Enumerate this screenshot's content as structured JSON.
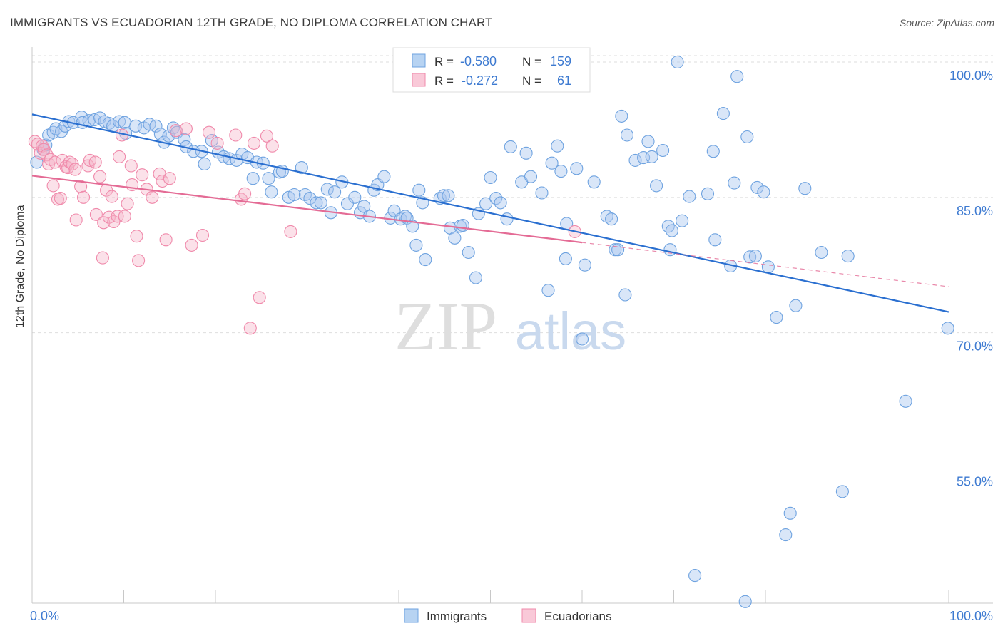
{
  "header": {
    "title": "IMMIGRANTS VS ECUADORIAN 12TH GRADE, NO DIPLOMA CORRELATION CHART",
    "source": "Source: ZipAtlas.com"
  },
  "watermark": {
    "zip": "ZIP",
    "atlas": "atlas"
  },
  "stats_legend": [
    {
      "r_label": "R =",
      "r_value": "-0.580",
      "n_label": "N =",
      "n_value": "159",
      "color": "#6fa3e0"
    },
    {
      "r_label": "R =",
      "r_value": "-0.272",
      "n_label": "N =",
      "n_value": "61",
      "color": "#f08aab"
    }
  ],
  "chart_data": {
    "type": "scatter",
    "title": "IMMIGRANTS VS ECUADORIAN 12TH GRADE, NO DIPLOMA CORRELATION CHART",
    "xlabel": "",
    "ylabel": "12th Grade, No Diploma",
    "xlim": [
      0,
      100
    ],
    "ylim": [
      40.5,
      101.5
    ],
    "x_tick_labels": [
      "0.0%",
      "100.0%"
    ],
    "y_ticks": [
      {
        "value": 100,
        "label": "100.0%"
      },
      {
        "value": 85,
        "label": "85.0%"
      },
      {
        "value": 70,
        "label": "70.0%"
      },
      {
        "value": 55,
        "label": "55.0%"
      }
    ],
    "grid": true,
    "legend_position": "bottom-center",
    "series": [
      {
        "name": "Immigrants",
        "color": "#6fa3e0",
        "trend": {
          "x": [
            0,
            100
          ],
          "y": [
            94.2,
            72.3
          ]
        },
        "points": [
          [
            0.5,
            88.9
          ],
          [
            1.2,
            90.3
          ],
          [
            1.5,
            90.8
          ],
          [
            1.8,
            91.9
          ],
          [
            2.3,
            92.2
          ],
          [
            2.6,
            92.6
          ],
          [
            3.2,
            92.3
          ],
          [
            3.6,
            92.9
          ],
          [
            4.0,
            93.4
          ],
          [
            4.5,
            93.3
          ],
          [
            5.4,
            93.9
          ],
          [
            5.5,
            93.3
          ],
          [
            6.2,
            93.5
          ],
          [
            6.8,
            93.6
          ],
          [
            7.4,
            93.8
          ],
          [
            7.9,
            93.4
          ],
          [
            8.4,
            93.2
          ],
          [
            8.8,
            92.9
          ],
          [
            9.5,
            93.4
          ],
          [
            10.1,
            93.3
          ],
          [
            10.2,
            92.1
          ],
          [
            11.3,
            92.9
          ],
          [
            12.2,
            92.7
          ],
          [
            12.8,
            93.1
          ],
          [
            13.5,
            92.9
          ],
          [
            14.0,
            92.0
          ],
          [
            14.4,
            91.1
          ],
          [
            14.9,
            91.8
          ],
          [
            15.4,
            92.7
          ],
          [
            15.8,
            92.2
          ],
          [
            16.6,
            91.4
          ],
          [
            16.8,
            90.6
          ],
          [
            17.6,
            90.1
          ],
          [
            18.5,
            90.1
          ],
          [
            18.8,
            88.7
          ],
          [
            19.6,
            91.3
          ],
          [
            20.3,
            90.0
          ],
          [
            20.9,
            89.5
          ],
          [
            21.5,
            89.3
          ],
          [
            22.3,
            89.1
          ],
          [
            22.9,
            89.8
          ],
          [
            23.5,
            89.4
          ],
          [
            24.1,
            87.1
          ],
          [
            24.5,
            88.9
          ],
          [
            25.2,
            88.8
          ],
          [
            25.8,
            87.1
          ],
          [
            26.1,
            85.6
          ],
          [
            27.0,
            87.8
          ],
          [
            27.3,
            87.9
          ],
          [
            28.0,
            85.0
          ],
          [
            28.6,
            85.3
          ],
          [
            29.4,
            88.3
          ],
          [
            29.8,
            85.3
          ],
          [
            30.3,
            84.9
          ],
          [
            31.0,
            84.4
          ],
          [
            31.5,
            84.4
          ],
          [
            32.2,
            85.9
          ],
          [
            32.6,
            83.3
          ],
          [
            33.0,
            85.6
          ],
          [
            33.8,
            86.7
          ],
          [
            34.4,
            84.3
          ],
          [
            35.2,
            85.0
          ],
          [
            35.8,
            83.3
          ],
          [
            36.2,
            84.0
          ],
          [
            36.8,
            82.9
          ],
          [
            37.3,
            85.8
          ],
          [
            37.7,
            86.4
          ],
          [
            38.4,
            87.3
          ],
          [
            39.1,
            82.7
          ],
          [
            39.5,
            83.5
          ],
          [
            40.2,
            82.6
          ],
          [
            40.7,
            82.9
          ],
          [
            40.9,
            82.7
          ],
          [
            41.5,
            81.8
          ],
          [
            41.9,
            79.7
          ],
          [
            42.2,
            85.8
          ],
          [
            42.6,
            84.4
          ],
          [
            42.9,
            78.1
          ],
          [
            44.5,
            84.9
          ],
          [
            44.9,
            85.2
          ],
          [
            45.4,
            85.2
          ],
          [
            45.6,
            81.6
          ],
          [
            46.1,
            80.5
          ],
          [
            46.7,
            81.8
          ],
          [
            47.0,
            81.9
          ],
          [
            47.6,
            78.9
          ],
          [
            48.4,
            76.1
          ],
          [
            48.7,
            83.2
          ],
          [
            49.5,
            84.3
          ],
          [
            50.0,
            87.2
          ],
          [
            50.6,
            84.9
          ],
          [
            51.1,
            84.4
          ],
          [
            51.8,
            82.6
          ],
          [
            52.2,
            90.6
          ],
          [
            53.4,
            86.7
          ],
          [
            53.9,
            89.9
          ],
          [
            54.4,
            87.3
          ],
          [
            55.6,
            85.5
          ],
          [
            56.3,
            74.7
          ],
          [
            56.7,
            88.8
          ],
          [
            57.3,
            90.7
          ],
          [
            57.7,
            87.9
          ],
          [
            58.2,
            78.2
          ],
          [
            58.3,
            82.1
          ],
          [
            59.4,
            88.2
          ],
          [
            60.0,
            69.3
          ],
          [
            60.3,
            77.5
          ],
          [
            61.3,
            86.7
          ],
          [
            62.7,
            82.9
          ],
          [
            63.2,
            82.6
          ],
          [
            63.6,
            79.2
          ],
          [
            63.9,
            79.2
          ],
          [
            64.3,
            94.0
          ],
          [
            64.7,
            74.2
          ],
          [
            64.9,
            91.9
          ],
          [
            65.8,
            89.1
          ],
          [
            66.7,
            89.4
          ],
          [
            67.2,
            91.2
          ],
          [
            67.6,
            89.5
          ],
          [
            68.1,
            86.3
          ],
          [
            68.8,
            90.2
          ],
          [
            69.4,
            81.8
          ],
          [
            69.6,
            79.2
          ],
          [
            69.8,
            81.3
          ],
          [
            70.4,
            100.0
          ],
          [
            70.9,
            82.4
          ],
          [
            71.7,
            85.1
          ],
          [
            72.3,
            43.1
          ],
          [
            73.7,
            85.4
          ],
          [
            74.3,
            90.1
          ],
          [
            74.5,
            80.3
          ],
          [
            75.4,
            94.3
          ],
          [
            76.2,
            77.4
          ],
          [
            76.6,
            86.6
          ],
          [
            76.9,
            98.4
          ],
          [
            77.8,
            40.2
          ],
          [
            78.0,
            91.7
          ],
          [
            78.3,
            78.4
          ],
          [
            78.9,
            78.5
          ],
          [
            79.1,
            86.1
          ],
          [
            79.8,
            85.6
          ],
          [
            80.3,
            77.3
          ],
          [
            81.2,
            71.7
          ],
          [
            82.2,
            47.6
          ],
          [
            82.7,
            50.0
          ],
          [
            83.3,
            73.0
          ],
          [
            84.3,
            86.0
          ],
          [
            86.1,
            78.9
          ],
          [
            88.4,
            52.4
          ],
          [
            89.0,
            78.5
          ],
          [
            95.3,
            62.4
          ],
          [
            99.9,
            70.5
          ]
        ]
      },
      {
        "name": "Ecuadorians",
        "color": "#f08aab",
        "trend": {
          "x": [
            0,
            60
          ],
          "y": [
            87.4,
            80.0
          ]
        },
        "trend_extension": {
          "x": [
            60,
            100
          ],
          "y": [
            80.0,
            75.1
          ]
        },
        "points": [
          [
            0.3,
            91.2
          ],
          [
            0.6,
            90.9
          ],
          [
            0.9,
            89.9
          ],
          [
            1.1,
            90.7
          ],
          [
            1.3,
            90.3
          ],
          [
            1.6,
            89.7
          ],
          [
            1.8,
            88.7
          ],
          [
            2.0,
            89.2
          ],
          [
            2.3,
            86.3
          ],
          [
            2.5,
            88.9
          ],
          [
            2.8,
            84.8
          ],
          [
            3.1,
            84.9
          ],
          [
            3.3,
            89.1
          ],
          [
            3.7,
            88.4
          ],
          [
            3.9,
            88.3
          ],
          [
            4.1,
            88.9
          ],
          [
            4.4,
            88.7
          ],
          [
            4.7,
            88.1
          ],
          [
            4.8,
            82.5
          ],
          [
            5.3,
            86.2
          ],
          [
            5.6,
            85.0
          ],
          [
            6.1,
            88.5
          ],
          [
            6.3,
            89.1
          ],
          [
            6.9,
            88.9
          ],
          [
            7.0,
            83.1
          ],
          [
            7.4,
            87.3
          ],
          [
            7.7,
            78.3
          ],
          [
            7.8,
            82.2
          ],
          [
            8.1,
            85.8
          ],
          [
            8.4,
            82.8
          ],
          [
            8.7,
            85.1
          ],
          [
            8.9,
            82.3
          ],
          [
            9.3,
            82.9
          ],
          [
            9.5,
            89.5
          ],
          [
            9.8,
            91.9
          ],
          [
            10.1,
            82.9
          ],
          [
            10.4,
            84.3
          ],
          [
            10.8,
            88.5
          ],
          [
            10.9,
            86.4
          ],
          [
            11.4,
            80.7
          ],
          [
            11.6,
            78.0
          ],
          [
            12.0,
            87.5
          ],
          [
            12.5,
            85.9
          ],
          [
            13.1,
            85.0
          ],
          [
            13.9,
            87.6
          ],
          [
            14.2,
            86.8
          ],
          [
            14.6,
            80.3
          ],
          [
            15.0,
            87.1
          ],
          [
            15.7,
            92.4
          ],
          [
            16.8,
            92.6
          ],
          [
            17.4,
            79.7
          ],
          [
            18.6,
            80.8
          ],
          [
            19.3,
            92.2
          ],
          [
            20.2,
            91.0
          ],
          [
            22.2,
            91.9
          ],
          [
            22.8,
            84.8
          ],
          [
            23.2,
            85.4
          ],
          [
            23.8,
            70.5
          ],
          [
            24.2,
            91.0
          ],
          [
            24.8,
            73.9
          ],
          [
            25.6,
            91.8
          ],
          [
            26.2,
            90.7
          ],
          [
            28.2,
            81.2
          ],
          [
            59.2,
            81.2
          ]
        ]
      }
    ]
  },
  "bottom_legend": [
    {
      "label": "Immigrants",
      "color": "#6fa3e0"
    },
    {
      "label": "Ecuadorians",
      "color": "#f08aab"
    }
  ]
}
